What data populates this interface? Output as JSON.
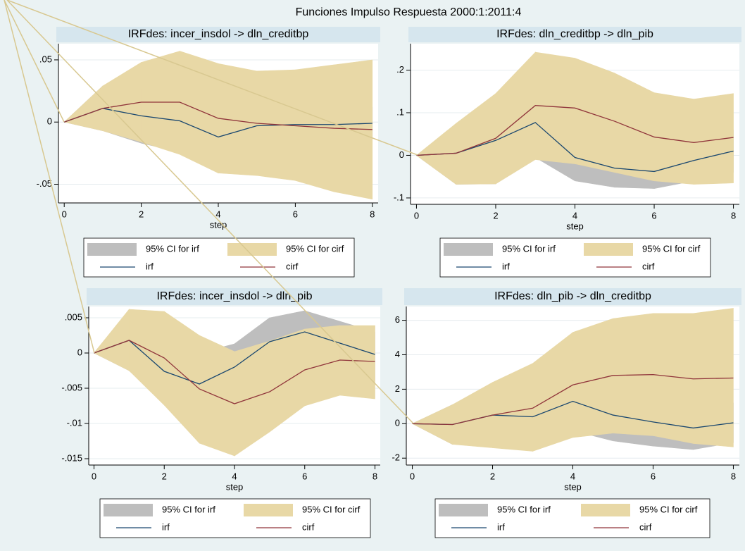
{
  "title": "Funciones Impulso Respuesta 2000:1:2011:4",
  "chart_data": [
    {
      "type": "line",
      "title": "IRFdes: incer_insdol -> dln_creditbp",
      "xlabel": "step",
      "x": [
        0,
        1,
        2,
        3,
        4,
        5,
        6,
        7,
        8
      ],
      "xlim": [
        -0.15,
        8.15
      ],
      "xticks": [
        0,
        2,
        4,
        6,
        8
      ],
      "ylim": [
        -0.065,
        0.063
      ],
      "yticks": [
        {
          "value": -0.05,
          "label": "-.05"
        },
        0,
        {
          "value": 0.05,
          "label": ".05"
        }
      ],
      "grid": true,
      "bands": [
        {
          "name": "95% CI for irf",
          "color": "#bebebe",
          "lower": [
            0,
            -0.007,
            -0.017,
            -0.024,
            -0.039,
            -0.019,
            -0.017,
            -0.016,
            -0.014
          ],
          "upper": [
            0,
            0.029,
            0.026,
            0.026,
            0.015,
            0.013,
            0.013,
            0.012,
            0.012
          ]
        },
        {
          "name": "95% CI for cirf",
          "color": "#e8d8a6",
          "lower": [
            0,
            -0.007,
            -0.016,
            -0.026,
            -0.041,
            -0.043,
            -0.047,
            -0.056,
            -0.062
          ],
          "upper": [
            0,
            0.029,
            0.048,
            0.057,
            0.047,
            0.041,
            0.042,
            0.046,
            0.05
          ]
        }
      ],
      "series": [
        {
          "name": "irf",
          "color": "#1a476f",
          "values": [
            0,
            0.011,
            0.005,
            0.001,
            -0.012,
            -0.003,
            -0.002,
            -0.002,
            -0.001
          ]
        },
        {
          "name": "cirf",
          "color": "#90353b",
          "values": [
            0,
            0.011,
            0.016,
            0.016,
            0.003,
            -0.001,
            -0.003,
            -0.005,
            -0.006
          ]
        }
      ]
    },
    {
      "type": "line",
      "title": "IRFdes: dln_creditbp -> dln_pib",
      "xlabel": "step",
      "x": [
        0,
        1,
        2,
        3,
        4,
        5,
        6,
        7,
        8
      ],
      "xlim": [
        -0.15,
        8.15
      ],
      "xticks": [
        0,
        2,
        4,
        6,
        8
      ],
      "ylim": [
        -0.115,
        0.262
      ],
      "yticks": [
        {
          "value": -0.1,
          "label": "-.1"
        },
        0,
        {
          "value": 0.1,
          "label": ".1"
        },
        {
          "value": 0.2,
          "label": ".2"
        }
      ],
      "grid": true,
      "bands": [
        {
          "name": "95% CI for irf",
          "color": "#bebebe",
          "lower": [
            0,
            -0.068,
            -0.067,
            -0.005,
            -0.06,
            -0.075,
            -0.078,
            -0.06,
            -0.04
          ],
          "upper": [
            0,
            0.07,
            0.12,
            0.16,
            0.05,
            0.02,
            0.01,
            0.03,
            0.06
          ]
        },
        {
          "name": "95% CI for cirf",
          "color": "#e8d8a6",
          "lower": [
            0,
            -0.068,
            -0.067,
            -0.01,
            -0.02,
            -0.04,
            -0.06,
            -0.068,
            -0.065
          ],
          "upper": [
            0,
            0.075,
            0.145,
            0.242,
            0.228,
            0.193,
            0.147,
            0.132,
            0.145
          ]
        }
      ],
      "series": [
        {
          "name": "irf",
          "color": "#1a476f",
          "values": [
            0,
            0.005,
            0.035,
            0.077,
            -0.005,
            -0.03,
            -0.038,
            -0.012,
            0.01
          ]
        },
        {
          "name": "cirf",
          "color": "#90353b",
          "values": [
            0,
            0.005,
            0.04,
            0.117,
            0.111,
            0.08,
            0.043,
            0.03,
            0.042
          ]
        }
      ]
    },
    {
      "type": "line",
      "title": "IRFdes: incer_insdol -> dln_pib",
      "xlabel": "step",
      "x": [
        0,
        1,
        2,
        3,
        4,
        5,
        6,
        7,
        8
      ],
      "xlim": [
        -0.15,
        8.15
      ],
      "xticks": [
        0,
        2,
        4,
        6,
        8
      ],
      "ylim": [
        -0.0159,
        0.0066
      ],
      "yticks": [
        {
          "value": -0.015,
          "label": "-.015"
        },
        {
          "value": -0.01,
          "label": "-.01"
        },
        {
          "value": -0.005,
          "label": "-.005"
        },
        0,
        {
          "value": 0.005,
          "label": ".005"
        }
      ],
      "grid": true,
      "bands": [
        {
          "name": "95% CI for irf",
          "color": "#bebebe",
          "lower": [
            0,
            -0.0025,
            -0.007,
            -0.009,
            -0.006,
            -0.002,
            0,
            -0.002,
            -0.004
          ],
          "upper": [
            0,
            0.006,
            0.002,
            0,
            0.0013,
            0.005,
            0.006,
            0.0045,
            0.003
          ]
        },
        {
          "name": "95% CI for cirf",
          "color": "#e8d8a6",
          "lower": [
            0,
            -0.0025,
            -0.0074,
            -0.0128,
            -0.0146,
            -0.0112,
            -0.0075,
            -0.006,
            -0.0065
          ],
          "upper": [
            0,
            0.0062,
            0.0059,
            0.0025,
            0.0002,
            0.0017,
            0.0034,
            0.0039,
            0.0039
          ]
        }
      ],
      "series": [
        {
          "name": "irf",
          "color": "#1a476f",
          "values": [
            0,
            0.0018,
            -0.0026,
            -0.0044,
            -0.002,
            0.0016,
            0.003,
            0.0014,
            -0.0002
          ]
        },
        {
          "name": "cirf",
          "color": "#90353b",
          "values": [
            0,
            0.0018,
            -0.0007,
            -0.0051,
            -0.0072,
            -0.0055,
            -0.0024,
            -0.001,
            -0.0012
          ]
        }
      ]
    },
    {
      "type": "line",
      "title": "IRFdes: dln_pib -> dln_creditbp",
      "xlabel": "step",
      "x": [
        0,
        1,
        2,
        3,
        4,
        5,
        6,
        7,
        8
      ],
      "xlim": [
        -0.15,
        8.15
      ],
      "xticks": [
        0,
        2,
        4,
        6,
        8
      ],
      "ylim": [
        -2.4,
        6.8
      ],
      "yticks": [
        -2,
        0,
        2,
        4,
        6
      ],
      "grid": true,
      "bands": [
        {
          "name": "95% CI for irf",
          "color": "#bebebe",
          "lower": [
            0,
            -1.2,
            -1.0,
            -1.5,
            -0.4,
            -1.0,
            -1.3,
            -1.5,
            -1.1
          ],
          "upper": [
            0,
            1.1,
            2.0,
            2.3,
            3.0,
            2.0,
            1.5,
            1.0,
            1.2
          ]
        },
        {
          "name": "95% CI for cirf",
          "color": "#e8d8a6",
          "lower": [
            0,
            -1.2,
            -1.4,
            -1.6,
            -0.8,
            -0.55,
            -0.7,
            -1.15,
            -1.35
          ],
          "upper": [
            0,
            1.1,
            2.4,
            3.5,
            5.3,
            6.1,
            6.4,
            6.4,
            6.7
          ]
        }
      ],
      "series": [
        {
          "name": "irf",
          "color": "#1a476f",
          "values": [
            0,
            -0.05,
            0.5,
            0.4,
            1.3,
            0.5,
            0.1,
            -0.25,
            0.05
          ]
        },
        {
          "name": "cirf",
          "color": "#90353b",
          "values": [
            0,
            -0.05,
            0.5,
            0.9,
            2.25,
            2.8,
            2.85,
            2.6,
            2.65
          ]
        }
      ]
    }
  ]
}
